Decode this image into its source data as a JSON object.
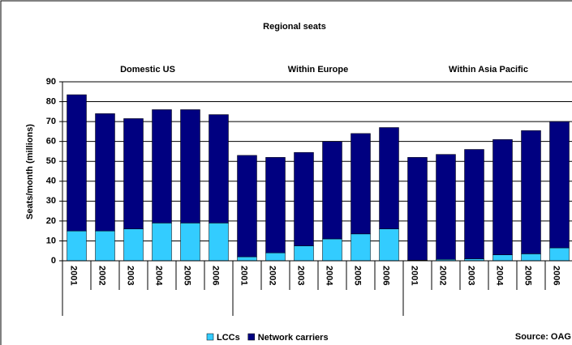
{
  "chart_data": {
    "type": "bar",
    "stacked": true,
    "title": "Regional seats",
    "ylabel": "Seats/month (millions)",
    "groups": [
      "Domestic US",
      "Within Europe",
      "Within Asia Pacific"
    ],
    "categories": [
      "2001",
      "2002",
      "2003",
      "2004",
      "2005",
      "2006",
      "2001",
      "2002",
      "2003",
      "2004",
      "2005",
      "2006",
      "2001",
      "2002",
      "2003",
      "2004",
      "2005",
      "2006"
    ],
    "series": [
      {
        "name": "LCCs",
        "color": "#33ccff",
        "values": [
          15,
          15,
          16,
          19,
          19,
          19,
          2,
          4,
          7.5,
          11,
          13.5,
          16,
          0.3,
          0.7,
          1,
          3,
          3.5,
          6.5
        ]
      },
      {
        "name": "Network carriers",
        "color": "#000080",
        "values": [
          68.5,
          59,
          55.5,
          57,
          57,
          54.5,
          51,
          48,
          47,
          49,
          50.5,
          51,
          51.7,
          52.8,
          55,
          58,
          62,
          63.5
        ]
      }
    ],
    "ylim": [
      0,
      90
    ],
    "yticks": [
      0,
      10,
      20,
      30,
      40,
      50,
      60,
      70,
      80,
      90
    ],
    "grid": true,
    "source": "Source: OAG"
  }
}
